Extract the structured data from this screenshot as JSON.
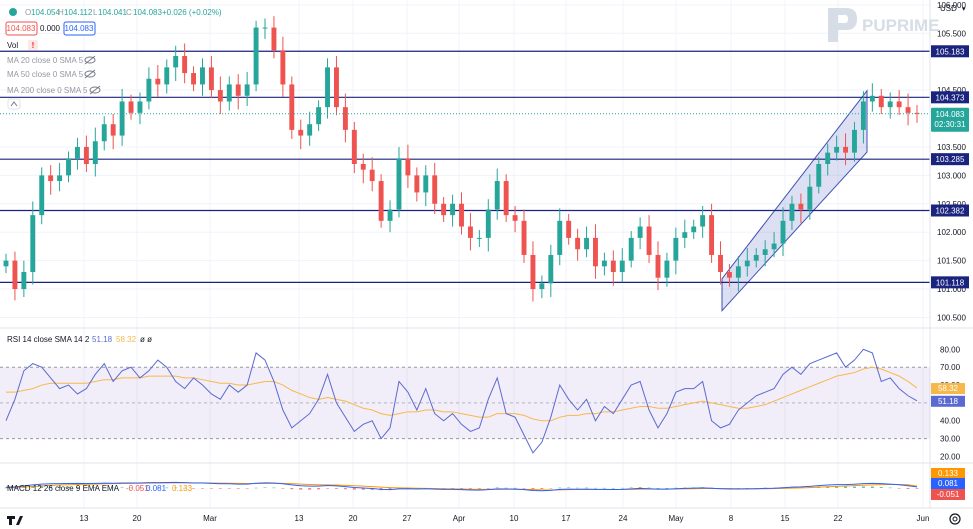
{
  "header": {
    "ohlc": {
      "open_label": "O",
      "open": "104.054",
      "high_label": "H",
      "high": "104.112",
      "low_label": "L",
      "low": "104.041",
      "close_label": "C",
      "close": "104.083",
      "change": "+0.026 (+0.02%)"
    },
    "bid": "104.083",
    "spread": "0.000",
    "ask": "104.083",
    "vol_label": "Vol",
    "ma_lines": [
      "MA 20 close 0 SMA 5",
      "MA 50 close 0 SMA 5",
      "MA 200 close 0 SMA 5"
    ]
  },
  "brand": {
    "name": "PUPRIME",
    "color": "#d6dde6"
  },
  "currency": "USD",
  "colors": {
    "up": "#26a69a",
    "down": "#ef5350",
    "level": "#1a237e",
    "channel": "#3f51b5",
    "rsi": "#5b6ad0",
    "rsi_ma": "#f7b84b",
    "macd": "#2962ff",
    "signal": "#ff9800",
    "price_tag": "#26a69a"
  },
  "chart_data": [
    {
      "type": "line",
      "title": "",
      "price_axis": {
        "ticks": [
          "106.000",
          "105.500",
          "104.500",
          "103.500",
          "103.000",
          "102.500",
          "102.000",
          "101.500",
          "101.000",
          "100.500"
        ],
        "ylim": [
          100.35,
          106.05
        ]
      },
      "x_ticks": [
        "13",
        "20",
        "Mar",
        "13",
        "20",
        "27",
        "Apr",
        "10",
        "17",
        "24",
        "May",
        "8",
        "15",
        "22",
        "Jun"
      ],
      "horizontal_levels": [
        105.183,
        104.373,
        103.285,
        102.382,
        101.118
      ],
      "last_price": 104.083,
      "countdown": "02:30:31",
      "close_series": [
        101.5,
        101.0,
        101.3,
        102.3,
        103.0,
        102.9,
        103.0,
        103.3,
        103.5,
        103.2,
        103.6,
        103.9,
        103.7,
        104.3,
        104.1,
        104.3,
        104.7,
        104.6,
        104.9,
        105.1,
        104.8,
        104.6,
        104.9,
        104.5,
        104.3,
        104.6,
        104.4,
        104.6,
        105.6,
        105.6,
        105.2,
        104.6,
        103.8,
        103.7,
        103.9,
        104.2,
        104.9,
        104.2,
        103.8,
        103.2,
        103.1,
        102.9,
        102.2,
        102.4,
        103.3,
        103.0,
        102.7,
        103.0,
        102.5,
        102.3,
        102.5,
        102.1,
        101.9,
        101.9,
        102.4,
        102.9,
        102.3,
        102.2,
        101.6,
        101.0,
        101.1,
        101.6,
        102.2,
        101.9,
        101.7,
        101.9,
        101.4,
        101.5,
        101.3,
        101.5,
        101.9,
        102.1,
        101.6,
        101.2,
        101.5,
        101.9,
        102.0,
        102.1,
        102.3,
        101.6,
        101.3,
        101.2,
        101.4,
        101.5,
        101.6,
        101.7,
        101.8,
        102.2,
        102.5,
        102.4,
        102.8,
        103.2,
        103.4,
        103.5,
        103.4,
        103.8,
        104.3,
        104.4,
        104.2,
        104.3,
        104.2,
        104.1,
        104.083
      ],
      "channel": {
        "lower_start": 100.62,
        "lower_end": 103.41,
        "upper_start": 101.18,
        "upper_end": 104.49
      }
    },
    {
      "type": "line",
      "title": "RSI 14 close SMA 14 2",
      "series": [
        {
          "name": "RSI",
          "value": "51.18"
        },
        {
          "name": "RSI-based MA",
          "value": "58.32"
        }
      ],
      "levels": [
        70,
        30
      ],
      "y_ticks": [
        "80.00",
        "70.00",
        "60.00",
        "50.00",
        "40.00",
        "30.00",
        "20.00"
      ],
      "ylim": [
        18,
        83
      ],
      "rsi_series": [
        40,
        52,
        68,
        72,
        70,
        64,
        58,
        60,
        55,
        58,
        66,
        72,
        62,
        68,
        70,
        64,
        68,
        74,
        70,
        62,
        58,
        64,
        60,
        55,
        52,
        60,
        56,
        60,
        78,
        74,
        62,
        46,
        36,
        40,
        44,
        52,
        66,
        50,
        42,
        34,
        38,
        40,
        30,
        36,
        62,
        56,
        46,
        58,
        44,
        40,
        44,
        38,
        34,
        36,
        52,
        64,
        44,
        42,
        32,
        22,
        28,
        42,
        60,
        52,
        46,
        52,
        40,
        48,
        44,
        52,
        60,
        62,
        46,
        36,
        44,
        56,
        58,
        58,
        62,
        40,
        36,
        38,
        46,
        50,
        54,
        56,
        58,
        66,
        70,
        66,
        72,
        74,
        76,
        78,
        70,
        74,
        80,
        78,
        62,
        64,
        58,
        54,
        51.18
      ],
      "ma_series": [
        56,
        56,
        57,
        58,
        60,
        61,
        61,
        61,
        61,
        61,
        62,
        63,
        63,
        64,
        64,
        64,
        65,
        65,
        65,
        65,
        64,
        64,
        63,
        62,
        61,
        61,
        60,
        60,
        61,
        62,
        62,
        60,
        57,
        55,
        53,
        52,
        53,
        52,
        51,
        49,
        47,
        46,
        44,
        43,
        44,
        45,
        45,
        46,
        46,
        45,
        45,
        44,
        43,
        42,
        42,
        44,
        44,
        44,
        43,
        41,
        40,
        40,
        42,
        43,
        43,
        44,
        44,
        45,
        45,
        46,
        47,
        48,
        48,
        47,
        47,
        48,
        49,
        50,
        51,
        50,
        49,
        48,
        47,
        47,
        48,
        49,
        51,
        53,
        55,
        57,
        59,
        61,
        63,
        65,
        66,
        67,
        69,
        70,
        69,
        67,
        65,
        62,
        58.32
      ]
    },
    {
      "type": "line",
      "title": "MACD 12 26 close 9 EMA EMA",
      "series": [
        {
          "name": "Histogram",
          "value": "-0.051"
        },
        {
          "name": "MACD",
          "value": "0.081"
        },
        {
          "name": "Signal",
          "value": "0.133"
        }
      ],
      "y_ticks": [],
      "macd_series": [
        0.05,
        0.08,
        0.15,
        0.22,
        0.28,
        0.3,
        0.31,
        0.32,
        0.33,
        0.32,
        0.33,
        0.35,
        0.34,
        0.36,
        0.36,
        0.36,
        0.38,
        0.38,
        0.39,
        0.4,
        0.38,
        0.36,
        0.36,
        0.33,
        0.3,
        0.3,
        0.28,
        0.28,
        0.34,
        0.37,
        0.36,
        0.3,
        0.22,
        0.16,
        0.13,
        0.13,
        0.18,
        0.15,
        0.1,
        0.04,
        0.0,
        -0.04,
        -0.1,
        -0.12,
        -0.06,
        -0.05,
        -0.07,
        -0.05,
        -0.08,
        -0.1,
        -0.1,
        -0.12,
        -0.14,
        -0.15,
        -0.12,
        -0.06,
        -0.07,
        -0.08,
        -0.12,
        -0.18,
        -0.2,
        -0.17,
        -0.1,
        -0.08,
        -0.09,
        -0.08,
        -0.1,
        -0.1,
        -0.11,
        -0.1,
        -0.06,
        -0.03,
        -0.05,
        -0.08,
        -0.08,
        -0.05,
        -0.03,
        -0.01,
        0.01,
        -0.02,
        -0.05,
        -0.07,
        -0.07,
        -0.06,
        -0.05,
        -0.03,
        -0.02,
        0.02,
        0.06,
        0.08,
        0.12,
        0.17,
        0.21,
        0.24,
        0.24,
        0.27,
        0.31,
        0.33,
        0.31,
        0.28,
        0.23,
        0.16,
        0.081
      ],
      "signal_series": [
        0.02,
        0.04,
        0.07,
        0.11,
        0.15,
        0.18,
        0.21,
        0.23,
        0.25,
        0.27,
        0.28,
        0.3,
        0.31,
        0.32,
        0.33,
        0.34,
        0.35,
        0.35,
        0.36,
        0.37,
        0.37,
        0.37,
        0.37,
        0.36,
        0.35,
        0.34,
        0.33,
        0.32,
        0.32,
        0.33,
        0.33,
        0.33,
        0.31,
        0.28,
        0.25,
        0.23,
        0.22,
        0.21,
        0.19,
        0.16,
        0.13,
        0.1,
        0.06,
        0.03,
        0.01,
        0.0,
        -0.02,
        -0.03,
        -0.04,
        -0.05,
        -0.06,
        -0.07,
        -0.09,
        -0.1,
        -0.1,
        -0.1,
        -0.09,
        -0.09,
        -0.1,
        -0.11,
        -0.13,
        -0.14,
        -0.13,
        -0.12,
        -0.11,
        -0.11,
        -0.11,
        -0.11,
        -0.11,
        -0.11,
        -0.1,
        -0.09,
        -0.08,
        -0.08,
        -0.08,
        -0.07,
        -0.06,
        -0.05,
        -0.04,
        -0.04,
        -0.04,
        -0.04,
        -0.05,
        -0.05,
        -0.05,
        -0.05,
        -0.04,
        -0.03,
        -0.01,
        0.01,
        0.03,
        0.06,
        0.09,
        0.12,
        0.14,
        0.17,
        0.2,
        0.22,
        0.24,
        0.25,
        0.25,
        0.23,
        0.133
      ]
    }
  ]
}
